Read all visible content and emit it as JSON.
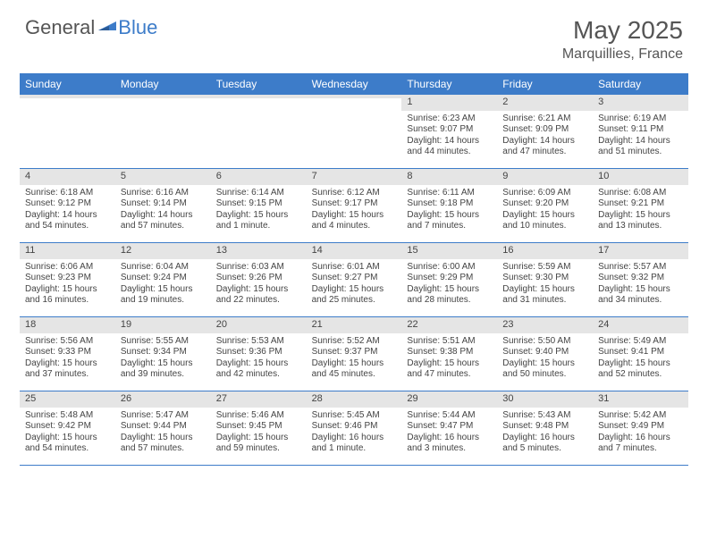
{
  "logo": {
    "general": "General",
    "blue": "Blue"
  },
  "title": {
    "month": "May 2025",
    "location": "Marquillies, France"
  },
  "colors": {
    "accent": "#3d7cc9",
    "dayBar": "#e5e5e5",
    "text": "#444"
  },
  "dayNames": [
    "Sunday",
    "Monday",
    "Tuesday",
    "Wednesday",
    "Thursday",
    "Friday",
    "Saturday"
  ],
  "weeks": [
    [
      {
        "n": "",
        "sr": "",
        "ss": "",
        "dl": ""
      },
      {
        "n": "",
        "sr": "",
        "ss": "",
        "dl": ""
      },
      {
        "n": "",
        "sr": "",
        "ss": "",
        "dl": ""
      },
      {
        "n": "",
        "sr": "",
        "ss": "",
        "dl": ""
      },
      {
        "n": "1",
        "sr": "Sunrise: 6:23 AM",
        "ss": "Sunset: 9:07 PM",
        "dl": "Daylight: 14 hours and 44 minutes."
      },
      {
        "n": "2",
        "sr": "Sunrise: 6:21 AM",
        "ss": "Sunset: 9:09 PM",
        "dl": "Daylight: 14 hours and 47 minutes."
      },
      {
        "n": "3",
        "sr": "Sunrise: 6:19 AM",
        "ss": "Sunset: 9:11 PM",
        "dl": "Daylight: 14 hours and 51 minutes."
      }
    ],
    [
      {
        "n": "4",
        "sr": "Sunrise: 6:18 AM",
        "ss": "Sunset: 9:12 PM",
        "dl": "Daylight: 14 hours and 54 minutes."
      },
      {
        "n": "5",
        "sr": "Sunrise: 6:16 AM",
        "ss": "Sunset: 9:14 PM",
        "dl": "Daylight: 14 hours and 57 minutes."
      },
      {
        "n": "6",
        "sr": "Sunrise: 6:14 AM",
        "ss": "Sunset: 9:15 PM",
        "dl": "Daylight: 15 hours and 1 minute."
      },
      {
        "n": "7",
        "sr": "Sunrise: 6:12 AM",
        "ss": "Sunset: 9:17 PM",
        "dl": "Daylight: 15 hours and 4 minutes."
      },
      {
        "n": "8",
        "sr": "Sunrise: 6:11 AM",
        "ss": "Sunset: 9:18 PM",
        "dl": "Daylight: 15 hours and 7 minutes."
      },
      {
        "n": "9",
        "sr": "Sunrise: 6:09 AM",
        "ss": "Sunset: 9:20 PM",
        "dl": "Daylight: 15 hours and 10 minutes."
      },
      {
        "n": "10",
        "sr": "Sunrise: 6:08 AM",
        "ss": "Sunset: 9:21 PM",
        "dl": "Daylight: 15 hours and 13 minutes."
      }
    ],
    [
      {
        "n": "11",
        "sr": "Sunrise: 6:06 AM",
        "ss": "Sunset: 9:23 PM",
        "dl": "Daylight: 15 hours and 16 minutes."
      },
      {
        "n": "12",
        "sr": "Sunrise: 6:04 AM",
        "ss": "Sunset: 9:24 PM",
        "dl": "Daylight: 15 hours and 19 minutes."
      },
      {
        "n": "13",
        "sr": "Sunrise: 6:03 AM",
        "ss": "Sunset: 9:26 PM",
        "dl": "Daylight: 15 hours and 22 minutes."
      },
      {
        "n": "14",
        "sr": "Sunrise: 6:01 AM",
        "ss": "Sunset: 9:27 PM",
        "dl": "Daylight: 15 hours and 25 minutes."
      },
      {
        "n": "15",
        "sr": "Sunrise: 6:00 AM",
        "ss": "Sunset: 9:29 PM",
        "dl": "Daylight: 15 hours and 28 minutes."
      },
      {
        "n": "16",
        "sr": "Sunrise: 5:59 AM",
        "ss": "Sunset: 9:30 PM",
        "dl": "Daylight: 15 hours and 31 minutes."
      },
      {
        "n": "17",
        "sr": "Sunrise: 5:57 AM",
        "ss": "Sunset: 9:32 PM",
        "dl": "Daylight: 15 hours and 34 minutes."
      }
    ],
    [
      {
        "n": "18",
        "sr": "Sunrise: 5:56 AM",
        "ss": "Sunset: 9:33 PM",
        "dl": "Daylight: 15 hours and 37 minutes."
      },
      {
        "n": "19",
        "sr": "Sunrise: 5:55 AM",
        "ss": "Sunset: 9:34 PM",
        "dl": "Daylight: 15 hours and 39 minutes."
      },
      {
        "n": "20",
        "sr": "Sunrise: 5:53 AM",
        "ss": "Sunset: 9:36 PM",
        "dl": "Daylight: 15 hours and 42 minutes."
      },
      {
        "n": "21",
        "sr": "Sunrise: 5:52 AM",
        "ss": "Sunset: 9:37 PM",
        "dl": "Daylight: 15 hours and 45 minutes."
      },
      {
        "n": "22",
        "sr": "Sunrise: 5:51 AM",
        "ss": "Sunset: 9:38 PM",
        "dl": "Daylight: 15 hours and 47 minutes."
      },
      {
        "n": "23",
        "sr": "Sunrise: 5:50 AM",
        "ss": "Sunset: 9:40 PM",
        "dl": "Daylight: 15 hours and 50 minutes."
      },
      {
        "n": "24",
        "sr": "Sunrise: 5:49 AM",
        "ss": "Sunset: 9:41 PM",
        "dl": "Daylight: 15 hours and 52 minutes."
      }
    ],
    [
      {
        "n": "25",
        "sr": "Sunrise: 5:48 AM",
        "ss": "Sunset: 9:42 PM",
        "dl": "Daylight: 15 hours and 54 minutes."
      },
      {
        "n": "26",
        "sr": "Sunrise: 5:47 AM",
        "ss": "Sunset: 9:44 PM",
        "dl": "Daylight: 15 hours and 57 minutes."
      },
      {
        "n": "27",
        "sr": "Sunrise: 5:46 AM",
        "ss": "Sunset: 9:45 PM",
        "dl": "Daylight: 15 hours and 59 minutes."
      },
      {
        "n": "28",
        "sr": "Sunrise: 5:45 AM",
        "ss": "Sunset: 9:46 PM",
        "dl": "Daylight: 16 hours and 1 minute."
      },
      {
        "n": "29",
        "sr": "Sunrise: 5:44 AM",
        "ss": "Sunset: 9:47 PM",
        "dl": "Daylight: 16 hours and 3 minutes."
      },
      {
        "n": "30",
        "sr": "Sunrise: 5:43 AM",
        "ss": "Sunset: 9:48 PM",
        "dl": "Daylight: 16 hours and 5 minutes."
      },
      {
        "n": "31",
        "sr": "Sunrise: 5:42 AM",
        "ss": "Sunset: 9:49 PM",
        "dl": "Daylight: 16 hours and 7 minutes."
      }
    ]
  ]
}
